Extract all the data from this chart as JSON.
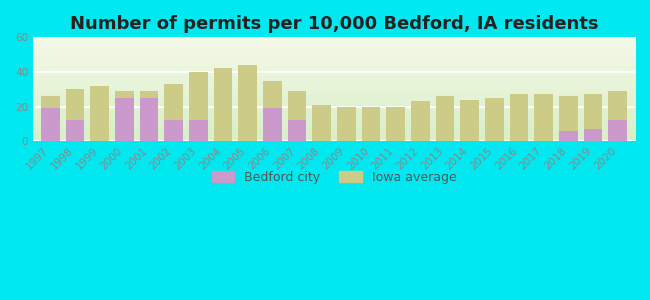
{
  "title": "Number of permits per 10,000 Bedford, IA residents",
  "years": [
    1997,
    1998,
    1999,
    2000,
    2001,
    2002,
    2003,
    2004,
    2005,
    2006,
    2007,
    2008,
    2009,
    2010,
    2011,
    2012,
    2013,
    2014,
    2015,
    2016,
    2017,
    2018,
    2019,
    2020
  ],
  "bedford": [
    19,
    12,
    0,
    25,
    25,
    12,
    12,
    0,
    0,
    19,
    12,
    0,
    0,
    0,
    0,
    0,
    0,
    0,
    0,
    0,
    0,
    6,
    7,
    12
  ],
  "iowa": [
    26,
    30,
    32,
    29,
    29,
    33,
    40,
    42,
    44,
    35,
    29,
    21,
    20,
    20,
    20,
    23,
    26,
    24,
    25,
    27,
    27,
    26,
    27,
    29
  ],
  "bedford_color": "#cc99cc",
  "iowa_color": "#cccc88",
  "background_outer": "#00e8f0",
  "ylim": [
    0,
    60
  ],
  "yticks": [
    0,
    20,
    40,
    60
  ],
  "title_fontsize": 13,
  "tick_fontsize": 7.5,
  "legend_label_bedford": "Bedford city",
  "legend_label_iowa": "Iowa average",
  "bar_width": 0.75
}
